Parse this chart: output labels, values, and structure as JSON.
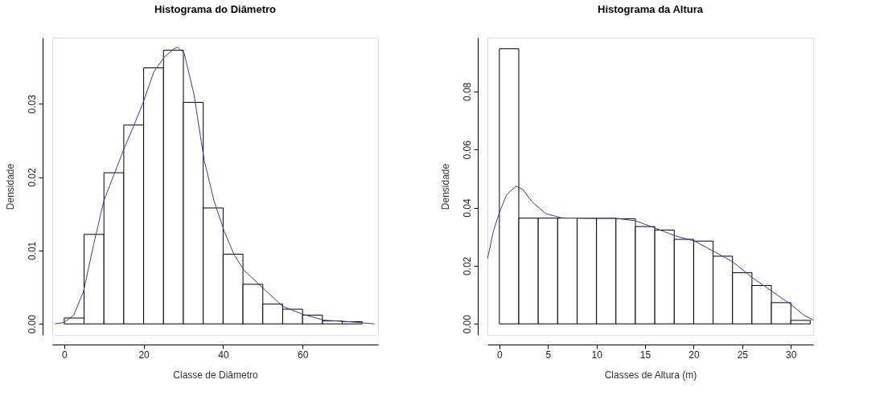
{
  "chart_data": [
    {
      "type": "histogram",
      "title": "Histograma do Diâmetro",
      "xlabel": "Classe de Diâmetro",
      "ylabel": "Densidade",
      "bins": [
        0,
        5,
        10,
        15,
        20,
        25,
        30,
        35,
        40,
        45,
        50,
        55,
        60,
        65,
        70,
        75
      ],
      "values": [
        0.0008,
        0.0122,
        0.0206,
        0.0271,
        0.0349,
        0.0373,
        0.0302,
        0.0158,
        0.0095,
        0.0054,
        0.0027,
        0.002,
        0.0012,
        0.0004,
        0.0003
      ],
      "color": "#ffffff",
      "series": [
        {
          "type": "line",
          "color": "#3b3ba0",
          "x": [
            -2.3,
            0,
            2.4,
            4.9,
            7.4,
            10,
            12.5,
            15,
            17.5,
            19.9,
            22.6,
            25.1,
            27.6,
            28.6,
            30.2,
            32.7,
            35.2,
            37.7,
            40.3,
            42.8,
            45.3,
            50,
            55,
            60.1,
            65.5,
            71.8,
            78.1
          ],
          "values": [
            0,
            0.0002,
            0.0012,
            0.0045,
            0.0108,
            0.0168,
            0.0203,
            0.0238,
            0.027,
            0.0302,
            0.0344,
            0.0363,
            0.0375,
            0.0377,
            0.0369,
            0.0312,
            0.0224,
            0.0168,
            0.0126,
            0.0094,
            0.0073,
            0.0049,
            0.0024,
            0.0013,
            0.0005,
            0.0003,
            0
          ]
        }
      ],
      "xlim": [
        -3,
        79
      ],
      "ylim": [
        -0.0015,
        0.039
      ],
      "xticks": [
        0,
        20,
        40,
        60
      ],
      "yticks": [
        {
          "value": 0,
          "label": "0.00"
        },
        {
          "value": 0.01,
          "label": "0.01"
        },
        {
          "value": 0.02,
          "label": "0.02"
        },
        {
          "value": 0.03,
          "label": "0.03"
        }
      ],
      "grid": false
    },
    {
      "type": "histogram",
      "title": "Histograma da Altura",
      "xlabel": "Classes de Altura (m)",
      "ylabel": "Densidade",
      "bins": [
        0,
        2,
        4,
        6,
        8,
        10,
        12,
        14,
        16,
        18,
        20,
        22,
        24,
        26,
        28,
        30,
        32
      ],
      "values": [
        0.0947,
        0.0364,
        0.0364,
        0.0364,
        0.0364,
        0.0364,
        0.0362,
        0.0335,
        0.0323,
        0.0291,
        0.0285,
        0.0233,
        0.0176,
        0.0132,
        0.0073,
        0.0012
      ],
      "color": "#ffffff",
      "series": [
        {
          "type": "line",
          "color": "#3b3ba0",
          "x": [
            -1.23,
            -0.6,
            0,
            0.75,
            1.7,
            2.4,
            3.4,
            4.8,
            6.4,
            9.1,
            12,
            14,
            16,
            18.1,
            20.1,
            22.1,
            24,
            26,
            28.1,
            30,
            31.3,
            32.3
          ],
          "values": [
            0.0223,
            0.0321,
            0.0383,
            0.0445,
            0.0474,
            0.0463,
            0.0419,
            0.0379,
            0.0365,
            0.0363,
            0.0363,
            0.0355,
            0.033,
            0.0303,
            0.0285,
            0.0249,
            0.0214,
            0.016,
            0.0111,
            0.0067,
            0.0031,
            0.0013
          ]
        }
      ],
      "xlim": [
        -1.23,
        32.3
      ],
      "ylim": [
        -0.0038,
        0.0985
      ],
      "xticks": [
        0,
        5,
        10,
        15,
        20,
        25,
        30
      ],
      "yticks": [
        {
          "value": 0,
          "label": "0.00"
        },
        {
          "value": 0.02,
          "label": "0.02"
        },
        {
          "value": 0.04,
          "label": "0.04"
        },
        {
          "value": 0.06,
          "label": "0.06"
        },
        {
          "value": 0.08,
          "label": "0.08"
        }
      ],
      "grid": false
    }
  ]
}
